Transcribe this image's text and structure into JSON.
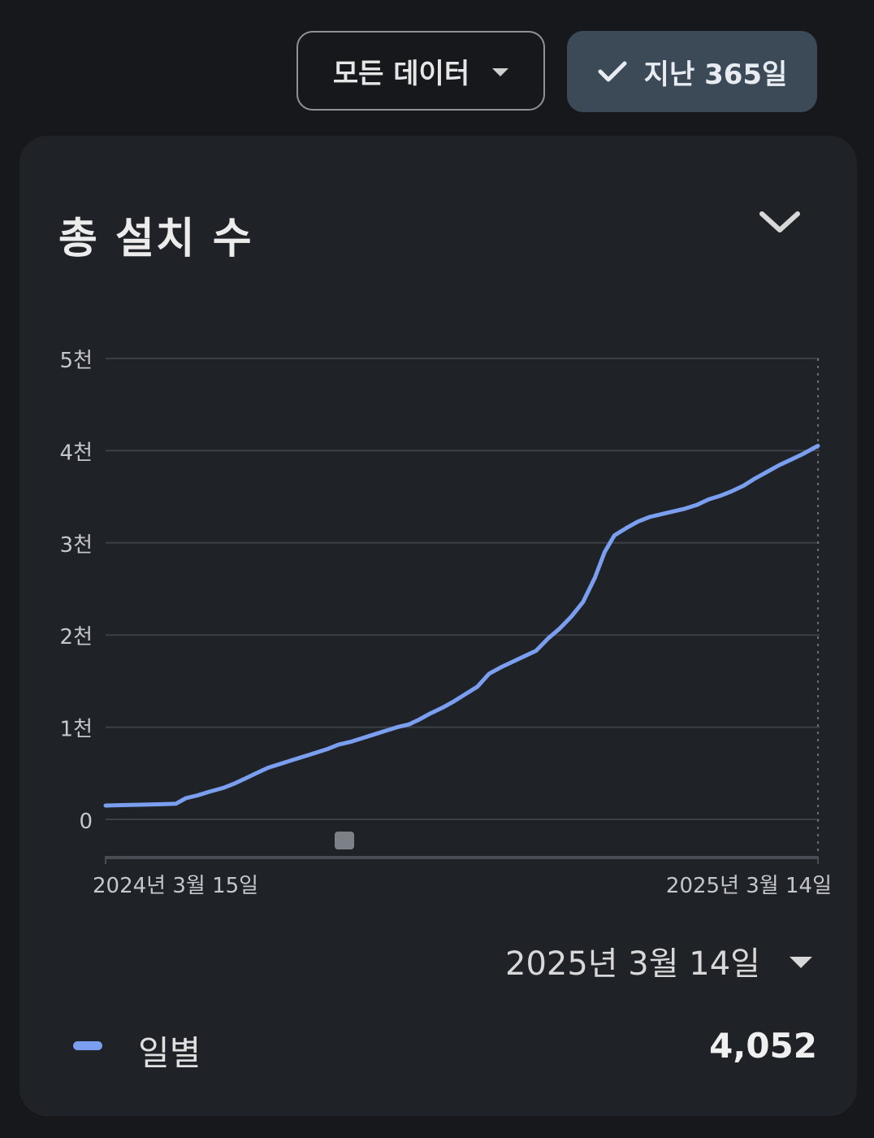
{
  "toolbar": {
    "filter_label": "모든 데이터",
    "range_label": "지난 365일"
  },
  "card": {
    "title": "총 설치 수"
  },
  "selected_date": "2025년 3월 14일",
  "legend": {
    "label": "일별",
    "value": "4,052"
  },
  "colors": {
    "line": "#7b9ff0",
    "grid": "#3c4045",
    "axis_text": "#c4c7cc",
    "button_selected": "#3c4a58"
  },
  "icons": {
    "filter_dropdown": "chevron-down-icon",
    "range_check": "check-icon",
    "collapse": "chevron-down-icon",
    "date_dropdown": "caret-down-icon"
  },
  "chart_data": {
    "type": "line",
    "ylim": [
      0,
      5000
    ],
    "yticks": [
      0,
      1000,
      2000,
      3000,
      4000,
      5000
    ],
    "ytick_labels": [
      "0",
      "1천",
      "2천",
      "3천",
      "4천",
      "5천"
    ],
    "xtick_labels": [
      "2024년 3월 15일",
      "2025년 3월 14일"
    ],
    "grid": true,
    "series": [
      {
        "name": "일별",
        "x": [
          0,
          10,
          20,
          30,
          36,
          41,
          47,
          53,
          60,
          66,
          71,
          77,
          83,
          89,
          95,
          101,
          107,
          113,
          119,
          125,
          131,
          137,
          143,
          149,
          155,
          160,
          166,
          172,
          178,
          184,
          190,
          196,
          202,
          208,
          214,
          220,
          226,
          232,
          238,
          244,
          250,
          255,
          260,
          266,
          272,
          278,
          284,
          290,
          296,
          302,
          308,
          314,
          320,
          326,
          332,
          338,
          344,
          350,
          356,
          362,
          364
        ],
        "y": [
          150,
          155,
          160,
          165,
          170,
          230,
          260,
          300,
          340,
          390,
          440,
          500,
          560,
          600,
          640,
          680,
          720,
          760,
          810,
          840,
          880,
          920,
          960,
          1000,
          1030,
          1080,
          1150,
          1210,
          1280,
          1360,
          1440,
          1580,
          1650,
          1710,
          1770,
          1830,
          1960,
          2070,
          2200,
          2360,
          2620,
          2900,
          3080,
          3160,
          3230,
          3280,
          3310,
          3340,
          3370,
          3410,
          3470,
          3510,
          3560,
          3620,
          3700,
          3770,
          3840,
          3900,
          3960,
          4030,
          4052
        ]
      }
    ]
  }
}
